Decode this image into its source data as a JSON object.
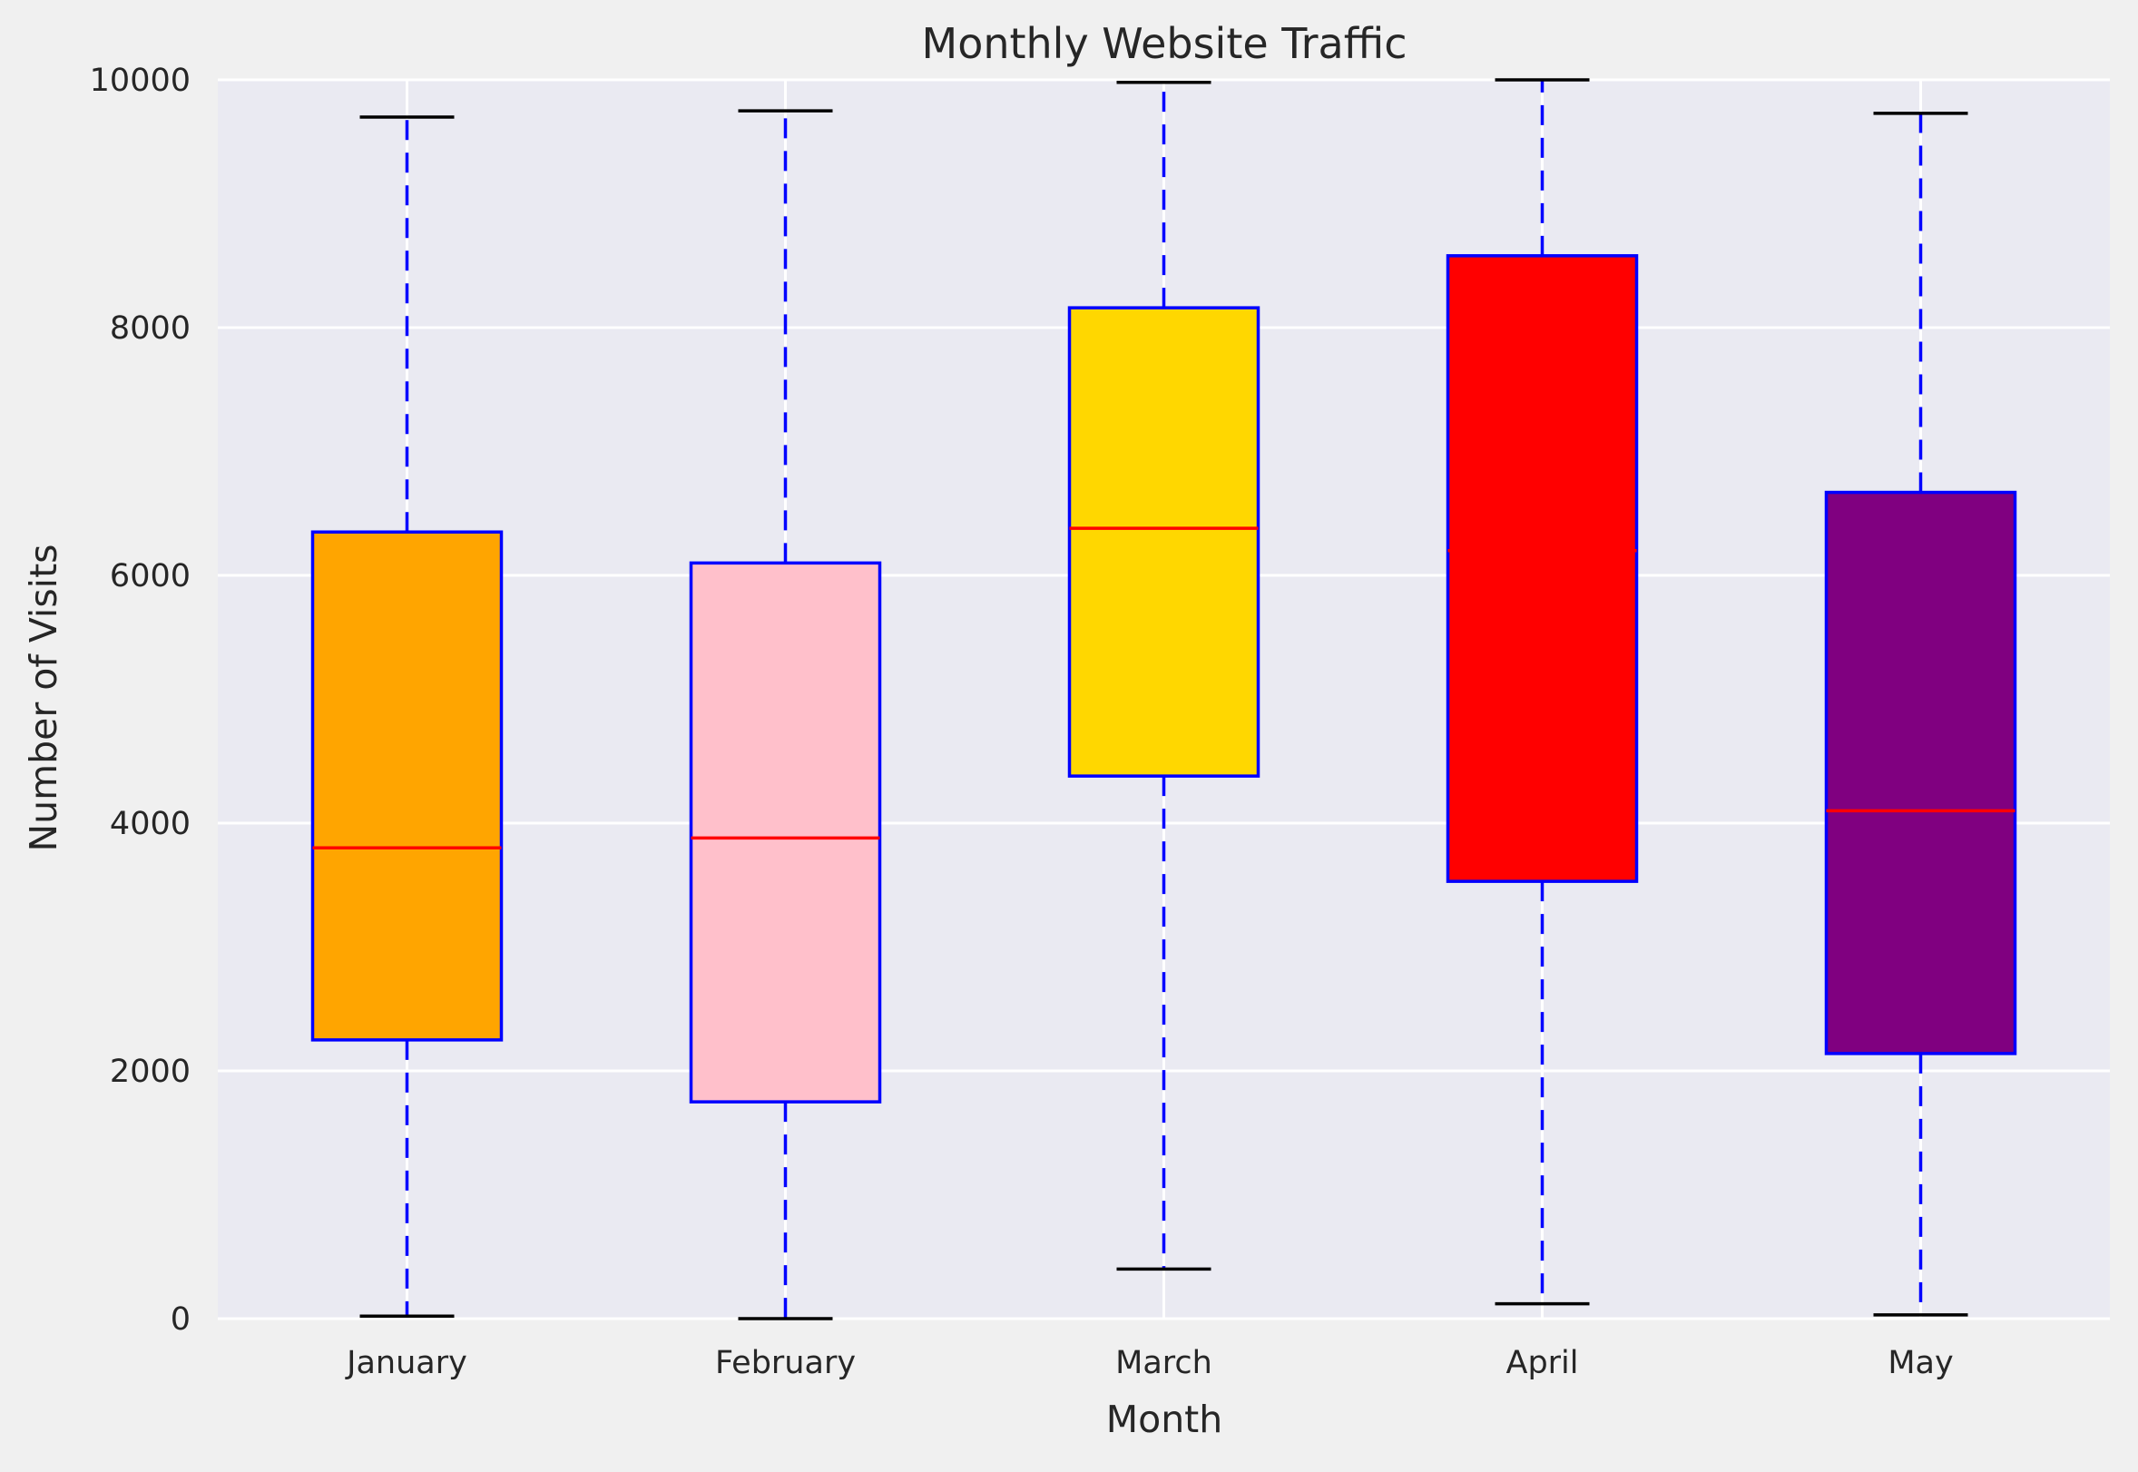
{
  "chart_data": {
    "type": "box",
    "title": "Monthly Website Traffic",
    "xlabel": "Month",
    "ylabel": "Number of Visits",
    "ylim": [
      0,
      10000
    ],
    "yticks": [
      0,
      2000,
      4000,
      6000,
      8000,
      10000
    ],
    "grid": true,
    "categories": [
      "January",
      "February",
      "March",
      "April",
      "May"
    ],
    "boxes": [
      {
        "label": "January",
        "min": 20,
        "q1": 2250,
        "median": 3800,
        "q3": 6350,
        "max": 9700,
        "fill": "#ffa500"
      },
      {
        "label": "February",
        "min": 0,
        "q1": 1750,
        "median": 3880,
        "q3": 6100,
        "max": 9750,
        "fill": "#ffc0cb"
      },
      {
        "label": "March",
        "min": 400,
        "q1": 4380,
        "median": 6380,
        "q3": 8160,
        "max": 9980,
        "fill": "#ffd700"
      },
      {
        "label": "April",
        "min": 120,
        "q1": 3530,
        "median": 6200,
        "q3": 8580,
        "max": 10000,
        "fill": "#ff0000"
      },
      {
        "label": "May",
        "min": 30,
        "q1": 2140,
        "median": 4100,
        "q3": 6670,
        "max": 9730,
        "fill": "#800080"
      }
    ],
    "colors": {
      "plot_background": "#eaeaf2",
      "figure_background": "#f0f0f0",
      "grid": "#ffffff",
      "box_edge": "#0000ff",
      "median": "#ff0000",
      "whisker": "#0000ff",
      "cap": "#000000"
    }
  }
}
